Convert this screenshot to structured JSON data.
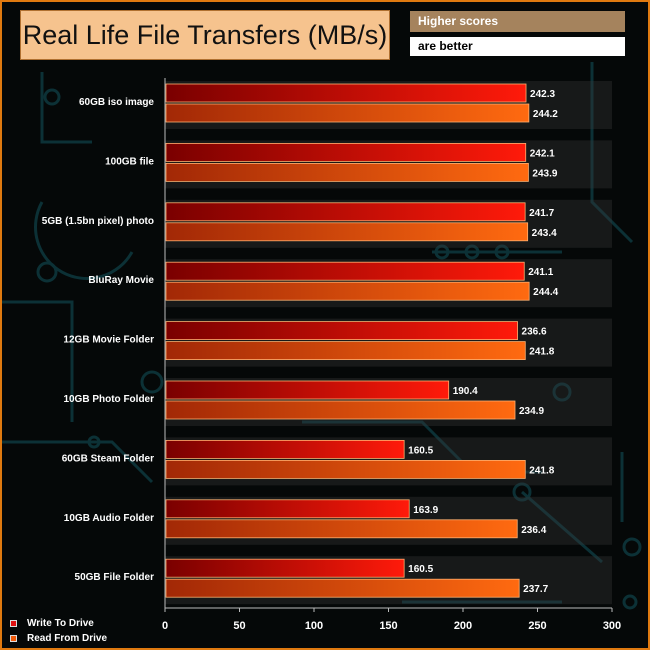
{
  "chart_data": {
    "type": "bar",
    "orientation": "horizontal",
    "title": "Real Life File Transfers (MB/s)",
    "categories": [
      "60GB iso image",
      "100GB file",
      "5GB (1.5bn pixel) photo",
      "BluRay Movie",
      "12GB Movie Folder",
      "10GB Photo Folder",
      "60GB Steam Folder",
      "10GB Audio Folder",
      "50GB File Folder"
    ],
    "series": [
      {
        "name": "Write To  Drive",
        "color": "#e01010",
        "values": [
          242.3,
          242.1,
          241.7,
          241.1,
          236.6,
          190.4,
          160.5,
          163.9,
          160.5
        ]
      },
      {
        "name": "Read From  Drive",
        "color": "#f05a0a",
        "values": [
          244.2,
          243.9,
          243.4,
          244.4,
          241.8,
          234.9,
          241.8,
          236.4,
          237.7
        ]
      }
    ],
    "xlim": [
      0,
      300
    ],
    "xticks": [
      0,
      50,
      100,
      150,
      200,
      250,
      300
    ],
    "grid": false,
    "legend": "bottom-left",
    "notes": [
      "Higher scores",
      "are better"
    ]
  },
  "colors": {
    "title_box": "#f6c38e",
    "accent": "#e07a10"
  }
}
